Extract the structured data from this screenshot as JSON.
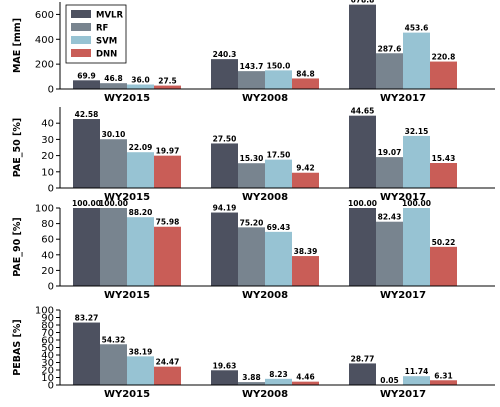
{
  "chart_data": [
    {
      "type": "bar",
      "ylabel": "MAE [mm]",
      "categories": [
        "WY2015",
        "WY2008",
        "WY2017"
      ],
      "ylim": [
        0,
        700
      ],
      "yticks": [
        0,
        200,
        400,
        600
      ],
      "series": [
        {
          "name": "MVLR",
          "values": [
            69.9,
            240.3,
            678.8
          ],
          "labels": [
            "69.9",
            "240.3",
            "678.8"
          ]
        },
        {
          "name": "RF",
          "values": [
            46.8,
            143.7,
            287.6
          ],
          "labels": [
            "46.8",
            "143.7",
            "287.6"
          ]
        },
        {
          "name": "SVM",
          "values": [
            36.0,
            150.0,
            453.6
          ],
          "labels": [
            "36.0",
            "150.0",
            "453.6"
          ]
        },
        {
          "name": "DNN",
          "values": [
            27.5,
            84.8,
            220.8
          ],
          "labels": [
            "27.5",
            "84.8",
            "220.8"
          ]
        }
      ],
      "legend": "top-left"
    },
    {
      "type": "bar",
      "ylabel": "PAE_50 [%]",
      "categories": [
        "WY2015",
        "WY2008",
        "WY2017"
      ],
      "ylim": [
        0,
        50
      ],
      "yticks": [
        0,
        10,
        20,
        30,
        40
      ],
      "series": [
        {
          "name": "MVLR",
          "values": [
            42.58,
            27.5,
            44.65
          ],
          "labels": [
            "42.58",
            "27.50",
            "44.65"
          ]
        },
        {
          "name": "RF",
          "values": [
            30.1,
            15.3,
            19.07
          ],
          "labels": [
            "30.10",
            "15.30",
            "19.07"
          ]
        },
        {
          "name": "SVM",
          "values": [
            22.09,
            17.5,
            32.15
          ],
          "labels": [
            "22.09",
            "17.50",
            "32.15"
          ]
        },
        {
          "name": "DNN",
          "values": [
            19.97,
            9.42,
            15.43
          ],
          "labels": [
            "19.97",
            "9.42",
            "15.43"
          ]
        }
      ]
    },
    {
      "type": "bar",
      "ylabel": "PAE_90 [%]",
      "categories": [
        "WY2015",
        "WY2008",
        "WY2017"
      ],
      "ylim": [
        0,
        100
      ],
      "yticks": [
        0,
        20,
        40,
        60,
        80,
        100
      ],
      "series": [
        {
          "name": "MVLR",
          "values": [
            100.0,
            94.19,
            100.0
          ],
          "labels": [
            "100.00",
            "94.19",
            "100.00"
          ]
        },
        {
          "name": "RF",
          "values": [
            100.0,
            75.2,
            82.43
          ],
          "labels": [
            "100.00",
            "75.20",
            "82.43"
          ]
        },
        {
          "name": "SVM",
          "values": [
            88.2,
            69.43,
            100.0
          ],
          "labels": [
            "88.20",
            "69.43",
            "100.00"
          ]
        },
        {
          "name": "DNN",
          "values": [
            75.98,
            38.39,
            50.22
          ],
          "labels": [
            "75.98",
            "38.39",
            "50.22"
          ]
        }
      ]
    },
    {
      "type": "bar",
      "ylabel": "PEBAS [%]",
      "categories": [
        "WY2015",
        "WY2008",
        "WY2017"
      ],
      "ylim": [
        0,
        100
      ],
      "yticks": [
        0,
        10,
        20,
        30,
        40,
        50,
        60,
        70,
        80,
        90,
        100
      ],
      "series": [
        {
          "name": "MVLR",
          "values": [
            83.27,
            19.63,
            28.77
          ],
          "labels": [
            "83.27",
            "19.63",
            "28.77"
          ]
        },
        {
          "name": "RF",
          "values": [
            54.32,
            3.88,
            0.05
          ],
          "labels": [
            "54.32",
            "3.88",
            "0.05"
          ]
        },
        {
          "name": "SVM",
          "values": [
            38.19,
            8.23,
            11.74
          ],
          "labels": [
            "38.19",
            "8.23",
            "11.74"
          ]
        },
        {
          "name": "DNN",
          "values": [
            24.47,
            4.46,
            6.31
          ],
          "labels": [
            "24.47",
            "4.46",
            "6.31"
          ]
        }
      ]
    }
  ],
  "colors": {
    "MVLR": "#4d5160",
    "RF": "#78848f",
    "SVM": "#97c3d3",
    "DNN": "#c95d57"
  }
}
